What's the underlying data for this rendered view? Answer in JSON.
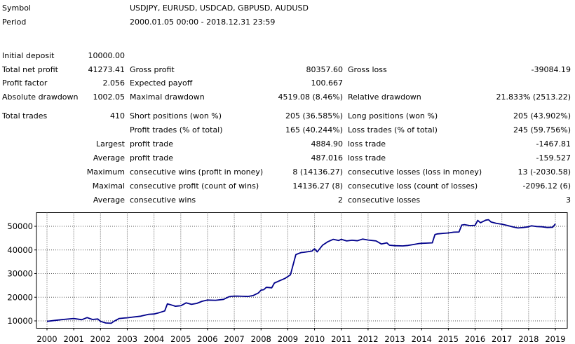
{
  "header": {
    "symbol_label": "Symbol",
    "symbol_value": "USDJPY, EURUSD, USDCAD, GBPUSD, AUDUSD",
    "period_label": "Period",
    "period_value": "2000.01.05 00:00 - 2018.12.31 23:59"
  },
  "stats": {
    "initial_deposit": {
      "label": "Initial deposit",
      "value": "10000.00"
    },
    "total_net_profit": {
      "label": "Total net profit",
      "value": "41273.41"
    },
    "gross_profit": {
      "label": "Gross profit",
      "value": "80357.60"
    },
    "gross_loss": {
      "label": "Gross loss",
      "value": "-39084.19"
    },
    "profit_factor": {
      "label": "Profit factor",
      "value": "2.056"
    },
    "expected_payoff": {
      "label": "Expected payoff",
      "value": "100.667"
    },
    "absolute_drawdown": {
      "label": "Absolute drawdown",
      "value": "1002.05"
    },
    "maximal_drawdown": {
      "label": "Maximal drawdown",
      "value": "4519.08 (8.46%)"
    },
    "relative_drawdown": {
      "label": "Relative drawdown",
      "value": "21.833% (2513.22)"
    },
    "total_trades": {
      "label": "Total trades",
      "value": "410"
    },
    "short_positions": {
      "label": "Short positions (won %)",
      "value": "205 (36.585%)"
    },
    "long_positions": {
      "label": "Long positions (won %)",
      "value": "205 (43.902%)"
    },
    "profit_trades": {
      "label": "Profit trades (% of total)",
      "value": "165 (40.244%)"
    },
    "loss_trades": {
      "label": "Loss trades (% of total)",
      "value": "245 (59.756%)"
    },
    "largest": {
      "label": "Largest",
      "profit_label": "profit trade",
      "profit_value": "4884.90",
      "loss_label": "loss trade",
      "loss_value": "-1467.81"
    },
    "average_trade": {
      "label": "Average",
      "profit_label": "profit trade",
      "profit_value": "487.016",
      "loss_label": "loss trade",
      "loss_value": "-159.527"
    },
    "maximum_consecutive": {
      "label": "Maximum",
      "wins_label": "consecutive wins (profit in money)",
      "wins_value": "8 (14136.27)",
      "losses_label": "consecutive losses (loss in money)",
      "losses_value": "13 (-2030.58)"
    },
    "maximal_consecutive": {
      "label": "Maximal",
      "profit_label": "consecutive profit (count of wins)",
      "profit_value": "14136.27 (8)",
      "loss_label": "consecutive loss (count of losses)",
      "loss_value": "-2096.12 (6)"
    },
    "average_consecutive": {
      "label": "Average",
      "wins_label": "consecutive wins",
      "wins_value": "2",
      "losses_label": "consecutive losses",
      "losses_value": "3"
    }
  },
  "colors": {
    "line": "#00008b",
    "grid": "#555555",
    "background": "#ffffff"
  },
  "chart_data": {
    "type": "line",
    "title": "",
    "xlabel": "",
    "ylabel": "",
    "grid": true,
    "x_ticks": [
      "2000",
      "2001",
      "2002",
      "2003",
      "2004",
      "2005",
      "2006",
      "2007",
      "2008",
      "2009",
      "2010",
      "2011",
      "2012",
      "2013",
      "2014",
      "2015",
      "2016",
      "2017",
      "2018",
      "2019"
    ],
    "y_ticks": [
      10000,
      20000,
      30000,
      40000,
      50000
    ],
    "xlim": [
      2000,
      2019
    ],
    "ylim": [
      8000,
      54000
    ],
    "series": [
      {
        "x": [
          2000.0,
          2000.3,
          2000.6,
          2001.0,
          2001.3,
          2001.5,
          2001.7,
          2001.9,
          2002.0,
          2002.2,
          2002.4,
          2002.5,
          2002.7,
          2002.9,
          2003.0,
          2003.2,
          2003.5,
          2003.8,
          2004.0,
          2004.2,
          2004.4,
          2004.5,
          2004.6,
          2004.8,
          2004.9,
          2005.0,
          2005.2,
          2005.4,
          2005.6,
          2005.8,
          2006.0,
          2006.3,
          2006.6,
          2006.8,
          2006.9,
          2007.1,
          2007.3,
          2007.5,
          2007.7,
          2007.9,
          2008.0,
          2008.1,
          2008.2,
          2008.4,
          2008.5,
          2008.7,
          2008.9,
          2009.1,
          2009.3,
          2009.4,
          2009.5,
          2009.6,
          2009.9,
          2010.0,
          2010.1,
          2010.3,
          2010.5,
          2010.7,
          2010.9,
          2011.0,
          2011.2,
          2011.4,
          2011.6,
          2011.8,
          2012.0,
          2012.3,
          2012.5,
          2012.7,
          2012.8,
          2013.0,
          2013.3,
          2013.5,
          2013.7,
          2013.9,
          2014.0,
          2014.2,
          2014.4,
          2014.5,
          2014.6,
          2014.8,
          2015.0,
          2015.2,
          2015.4,
          2015.5,
          2015.6,
          2015.8,
          2016.0,
          2016.1,
          2016.2,
          2016.4,
          2016.5,
          2016.6,
          2016.8,
          2017.0,
          2017.2,
          2017.4,
          2017.6,
          2017.8,
          2018.0,
          2018.1,
          2018.3,
          2018.5,
          2018.7,
          2018.9,
          2019.0
        ],
        "y": [
          9800,
          10200,
          10600,
          11000,
          10500,
          11400,
          10600,
          10800,
          9800,
          9100,
          9000,
          9800,
          11000,
          11200,
          11300,
          11600,
          12000,
          12800,
          12900,
          13500,
          14200,
          17200,
          16900,
          16200,
          16300,
          16400,
          17600,
          17000,
          17400,
          18300,
          18800,
          18700,
          19100,
          20200,
          20400,
          20500,
          20400,
          20300,
          20700,
          21800,
          23000,
          23200,
          24200,
          24000,
          26000,
          27000,
          28000,
          29500,
          38000,
          38500,
          38900,
          39000,
          39500,
          40500,
          39200,
          42000,
          43500,
          44500,
          44000,
          44500,
          43800,
          44100,
          43900,
          44600,
          44200,
          43800,
          42500,
          43000,
          42000,
          41800,
          41700,
          41900,
          42300,
          42700,
          42800,
          42900,
          43000,
          46500,
          46800,
          47000,
          47200,
          47500,
          47600,
          50500,
          50700,
          50300,
          50400,
          52500,
          51500,
          52600,
          52800,
          51800,
          51200,
          50900,
          50400,
          49800,
          49300,
          49500,
          49800,
          50200,
          49900,
          49800,
          49500,
          49600,
          51000
        ]
      }
    ]
  }
}
